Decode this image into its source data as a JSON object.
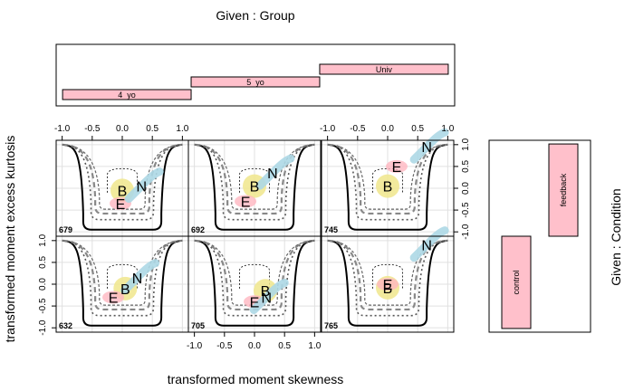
{
  "chart_data": {
    "type": "coplot",
    "given_group_title": "Given : Group",
    "given_condition_title": "Given : Condition",
    "xlabel": "transformed moment skewness",
    "ylabel": "transformed moment excess kurtosis",
    "xlim": [
      -1.1,
      1.1
    ],
    "ylim": [
      -1.1,
      1.1
    ],
    "x_ticks": [
      "-1.0",
      "-0.5",
      "0.0",
      "0.5",
      "1.0"
    ],
    "y_ticks": [
      "-1.0",
      "-0.5",
      "0.0",
      "0.5",
      "1.0"
    ],
    "group_intervals": [
      {
        "label": "4_yo",
        "range": [
          -1.0,
          0.0
        ]
      },
      {
        "label": "5_yo",
        "range": [
          0.0,
          1.0
        ]
      },
      {
        "label": "Univ",
        "range": [
          1.0,
          2.0
        ]
      }
    ],
    "condition_intervals": [
      {
        "label": "control",
        "range": [
          0.0,
          0.5
        ]
      },
      {
        "label": "feedback",
        "range": [
          0.5,
          1.0
        ]
      }
    ],
    "marker_legend": [
      "B",
      "E",
      "N"
    ],
    "colors": {
      "B": "#f0e68c",
      "E": "#ffb6c1",
      "N": "#add8e6",
      "interval": "#ffc0cb"
    },
    "panels": [
      {
        "id": "679",
        "condition": "feedback",
        "group": "4_yo",
        "markers": [
          {
            "label": "B",
            "x": 0.0,
            "y": -0.05
          },
          {
            "label": "E",
            "x": -0.03,
            "y": -0.35
          },
          {
            "label": "N",
            "x": 0.32,
            "y": 0.05
          }
        ]
      },
      {
        "id": "692",
        "condition": "feedback",
        "group": "5_yo",
        "markers": [
          {
            "label": "B",
            "x": 0.0,
            "y": 0.05
          },
          {
            "label": "E",
            "x": -0.15,
            "y": -0.3
          },
          {
            "label": "N",
            "x": 0.3,
            "y": 0.35
          }
        ]
      },
      {
        "id": "745",
        "condition": "feedback",
        "group": "Univ",
        "markers": [
          {
            "label": "B",
            "x": 0.0,
            "y": 0.05
          },
          {
            "label": "E",
            "x": 0.15,
            "y": 0.5
          },
          {
            "label": "N",
            "x": 0.65,
            "y": 0.95
          }
        ]
      },
      {
        "id": "632",
        "condition": "control",
        "group": "4_yo",
        "markers": [
          {
            "label": "B",
            "x": 0.05,
            "y": -0.1
          },
          {
            "label": "E",
            "x": -0.15,
            "y": -0.3
          },
          {
            "label": "N",
            "x": 0.25,
            "y": 0.15
          }
        ]
      },
      {
        "id": "705",
        "condition": "control",
        "group": "5_yo",
        "markers": [
          {
            "label": "B",
            "x": 0.18,
            "y": -0.15
          },
          {
            "label": "E",
            "x": 0.0,
            "y": -0.4
          },
          {
            "label": "N",
            "x": 0.2,
            "y": -0.3
          }
        ]
      },
      {
        "id": "765",
        "condition": "control",
        "group": "Univ",
        "markers": [
          {
            "label": "B",
            "x": 0.0,
            "y": -0.08
          },
          {
            "label": "E",
            "x": 0.0,
            "y": 0.0
          },
          {
            "label": "N",
            "x": 0.65,
            "y": 0.9
          }
        ]
      }
    ]
  }
}
